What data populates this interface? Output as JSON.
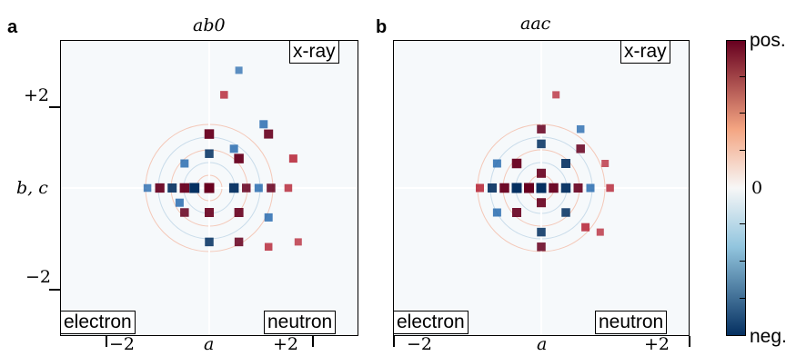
{
  "figure": {
    "panels": [
      {
        "letter": "a",
        "title": "ab0",
        "corner_labels": {
          "top_right": "x-ray",
          "bottom_left": "electron",
          "bottom_right": "neutron"
        }
      },
      {
        "letter": "b",
        "title": "aac",
        "corner_labels": {
          "top_right": "x-ray",
          "bottom_left": "electron",
          "bottom_right": "neutron"
        }
      }
    ],
    "axes": {
      "x_label": "a",
      "y_label": "b, c",
      "x_tick_labels": [
        "−2",
        "+2"
      ],
      "y_tick_labels": [
        "+2",
        "−2"
      ]
    },
    "colorbar": {
      "top_label": "pos.",
      "mid_label": "0",
      "bottom_label": "neg."
    }
  },
  "colors": {
    "positive": "#67001f",
    "positive_light": "#f4a582",
    "zero": "#f7f7f7",
    "negative_light": "#92c5de",
    "negative": "#053061"
  },
  "chart_data": [
    {
      "type": "heatmap",
      "title": "ab0",
      "xlabel": "a",
      "ylabel": "b, c",
      "x_ticks": [
        -2,
        2
      ],
      "y_ticks": [
        2,
        -2
      ],
      "xlim": [
        -3,
        3
      ],
      "ylim": [
        -3,
        3
      ],
      "value_scale": [
        "neg.",
        "0",
        "pos."
      ],
      "peaks": [
        {
          "x": 0,
          "y": 0,
          "v": 1.0
        },
        {
          "x": -0.3,
          "y": 0,
          "v": -1.0
        },
        {
          "x": -0.5,
          "y": 0,
          "v": 0.9
        },
        {
          "x": -0.75,
          "y": 0,
          "v": -0.8
        },
        {
          "x": -1.0,
          "y": 0,
          "v": 0.85
        },
        {
          "x": -1.25,
          "y": 0,
          "v": -0.5
        },
        {
          "x": 0.5,
          "y": 0,
          "v": -0.9
        },
        {
          "x": 0.75,
          "y": 0,
          "v": 0.7
        },
        {
          "x": 1.0,
          "y": 0,
          "v": -0.6
        },
        {
          "x": 1.25,
          "y": 0,
          "v": 0.7
        },
        {
          "x": 1.6,
          "y": 0,
          "v": 0.5
        },
        {
          "x": 0,
          "y": 1.1,
          "v": 0.9
        },
        {
          "x": 0,
          "y": 0.7,
          "v": -0.7
        },
        {
          "x": 0,
          "y": -0.5,
          "v": 0.8
        },
        {
          "x": 0,
          "y": -1.1,
          "v": -0.7
        },
        {
          "x": 0.6,
          "y": 0.6,
          "v": 0.9
        },
        {
          "x": 0.5,
          "y": 0.8,
          "v": -0.6
        },
        {
          "x": 1.2,
          "y": 1.1,
          "v": 0.8
        },
        {
          "x": 1.1,
          "y": 1.3,
          "v": -0.6
        },
        {
          "x": 1.7,
          "y": 0.6,
          "v": 0.6
        },
        {
          "x": 0.6,
          "y": -0.5,
          "v": 0.8
        },
        {
          "x": 1.2,
          "y": -0.6,
          "v": -0.6
        },
        {
          "x": -0.5,
          "y": 0.5,
          "v": -0.6
        },
        {
          "x": -0.5,
          "y": -0.5,
          "v": 0.7
        },
        {
          "x": -0.6,
          "y": -0.3,
          "v": -0.6
        },
        {
          "x": 0.6,
          "y": -1.1,
          "v": 0.7
        },
        {
          "x": 1.2,
          "y": -1.2,
          "v": 0.5
        },
        {
          "x": 1.8,
          "y": -1.1,
          "v": 0.4
        },
        {
          "x": 0.3,
          "y": 1.9,
          "v": 0.5
        },
        {
          "x": 0.6,
          "y": 2.4,
          "v": -0.4
        }
      ]
    },
    {
      "type": "heatmap",
      "title": "aac",
      "xlabel": "a",
      "ylabel": "b, c",
      "x_ticks": [
        -2,
        2
      ],
      "y_ticks": [
        2,
        -2
      ],
      "xlim": [
        -3,
        3
      ],
      "ylim": [
        -3,
        3
      ],
      "value_scale": [
        "neg.",
        "0",
        "pos."
      ],
      "peaks": [
        {
          "x": 0,
          "y": 0,
          "v": -1.0
        },
        {
          "x": -0.25,
          "y": 0,
          "v": 1.0
        },
        {
          "x": 0.25,
          "y": 0,
          "v": 0.9
        },
        {
          "x": -0.5,
          "y": 0,
          "v": -1.0
        },
        {
          "x": 0.5,
          "y": 0,
          "v": -0.9
        },
        {
          "x": -0.75,
          "y": 0,
          "v": 0.9
        },
        {
          "x": 0.75,
          "y": 0,
          "v": 0.8
        },
        {
          "x": -1.0,
          "y": 0,
          "v": -0.8
        },
        {
          "x": 1.0,
          "y": 0,
          "v": -0.6
        },
        {
          "x": -1.25,
          "y": 0,
          "v": 0.6
        },
        {
          "x": 1.4,
          "y": 0,
          "v": 0.5
        },
        {
          "x": 0,
          "y": 0.3,
          "v": 0.8
        },
        {
          "x": 0,
          "y": -0.3,
          "v": 0.8
        },
        {
          "x": -0.5,
          "y": 0.5,
          "v": 0.9
        },
        {
          "x": 0.5,
          "y": 0.5,
          "v": -0.8
        },
        {
          "x": -0.5,
          "y": -0.5,
          "v": 0.8
        },
        {
          "x": 0.5,
          "y": -0.5,
          "v": -0.7
        },
        {
          "x": 0,
          "y": 0.9,
          "v": -0.7
        },
        {
          "x": 0,
          "y": -0.9,
          "v": -0.7
        },
        {
          "x": -0.9,
          "y": 0.5,
          "v": -0.6
        },
        {
          "x": -0.9,
          "y": -0.5,
          "v": -0.6
        },
        {
          "x": 0.8,
          "y": 0.8,
          "v": 0.7
        },
        {
          "x": 0.9,
          "y": -0.8,
          "v": 0.6
        },
        {
          "x": 0,
          "y": 1.2,
          "v": 0.7
        },
        {
          "x": 0,
          "y": -1.2,
          "v": 0.7
        },
        {
          "x": 0.8,
          "y": 1.2,
          "v": -0.5
        },
        {
          "x": 1.3,
          "y": 0.5,
          "v": 0.4
        },
        {
          "x": 1.2,
          "y": -0.9,
          "v": 0.4
        },
        {
          "x": 0.3,
          "y": 1.9,
          "v": 0.4
        }
      ]
    }
  ]
}
